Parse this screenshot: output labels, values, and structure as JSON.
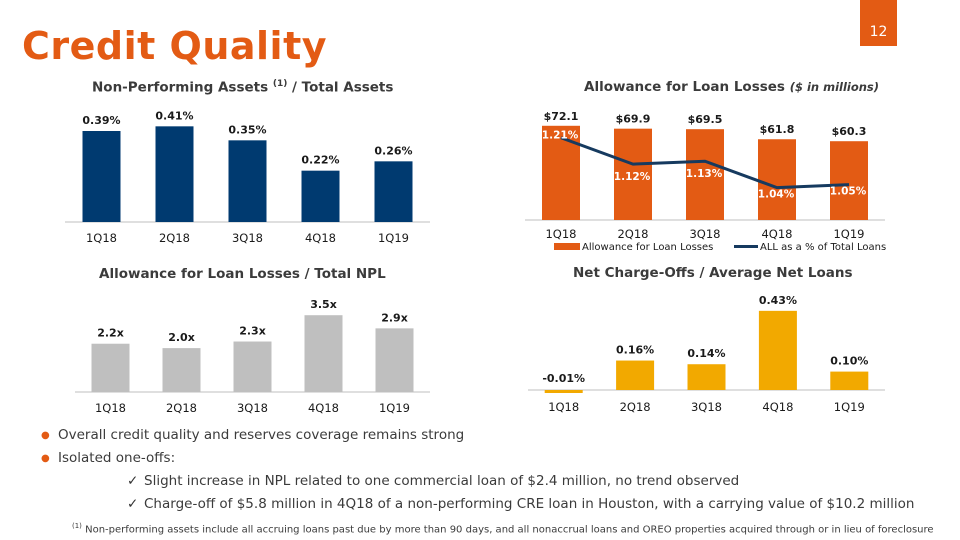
{
  "page_number": "12",
  "title": "Credit Quality",
  "colors": {
    "accent": "#e35b14",
    "navy": "#003a70",
    "gray": "#bfbfbf",
    "gold": "#f2a900",
    "line": "#163a5f"
  },
  "charts": {
    "npa": {
      "title": "Non-Performing Assets",
      "title_sup": "(1)",
      "title_rest": " / Total Assets"
    },
    "allowance": {
      "title": "Allowance for Loan Losses",
      "title_note": "($ in millions)"
    },
    "npl": {
      "title": "Allowance for Loan Losses / Total NPL"
    },
    "nco": {
      "title": "Net Charge-Offs / Average Net Loans"
    }
  },
  "chart_data": [
    {
      "id": "npa",
      "type": "bar",
      "title": "Non-Performing Assets (1) / Total Assets",
      "categories": [
        "1Q18",
        "2Q18",
        "3Q18",
        "4Q18",
        "1Q19"
      ],
      "values": [
        0.39,
        0.41,
        0.35,
        0.22,
        0.26
      ],
      "labels": [
        "0.39%",
        "0.41%",
        "0.35%",
        "0.22%",
        "0.26%"
      ],
      "ylim": [
        0,
        0.42
      ],
      "color": "#003a70"
    },
    {
      "id": "allowance",
      "type": "bar",
      "title": "Allowance for Loan Losses ($ in millions)",
      "categories": [
        "1Q18",
        "2Q18",
        "3Q18",
        "4Q18",
        "1Q19"
      ],
      "series": [
        {
          "name": "Allowance for Loan Losses",
          "type": "bar",
          "values": [
            72.1,
            69.9,
            69.5,
            61.8,
            60.3
          ],
          "labels": [
            "$72.1",
            "$69.9",
            "$69.5",
            "$61.8",
            "$60.3"
          ],
          "color": "#e35b14",
          "ylim": [
            0,
            75
          ]
        },
        {
          "name": "ALL as a % of Total Loans",
          "type": "line",
          "values": [
            1.21,
            1.12,
            1.13,
            1.04,
            1.05
          ],
          "labels": [
            "1.21%",
            "1.12%",
            "1.13%",
            "1.04%",
            "1.05%"
          ],
          "color": "#163a5f",
          "ylim": [
            0.95,
            1.25
          ]
        }
      ],
      "legend": [
        "Allowance for Loan Losses",
        "ALL as a % of Total Loans"
      ]
    },
    {
      "id": "npl",
      "type": "bar",
      "title": "Allowance for Loan Losses / Total NPL",
      "categories": [
        "1Q18",
        "2Q18",
        "3Q18",
        "4Q18",
        "1Q19"
      ],
      "values": [
        2.2,
        2.0,
        2.3,
        3.5,
        2.9
      ],
      "labels": [
        "2.2x",
        "2.0x",
        "2.3x",
        "3.5x",
        "2.9x"
      ],
      "ylim": [
        0,
        3.6
      ],
      "color": "#bfbfbf"
    },
    {
      "id": "nco",
      "type": "bar",
      "title": "Net Charge-Offs / Average Net Loans",
      "categories": [
        "1Q18",
        "2Q18",
        "3Q18",
        "4Q18",
        "1Q19"
      ],
      "values": [
        -0.01,
        0.16,
        0.14,
        0.43,
        0.1
      ],
      "labels": [
        "-0.01%",
        "0.16%",
        "0.14%",
        "0.43%",
        "0.10%"
      ],
      "ylim": [
        -0.01,
        0.44
      ],
      "color": "#f2a900"
    }
  ],
  "bullets": [
    "Overall credit quality and reserves coverage remains strong",
    "Isolated one-offs:"
  ],
  "sub_bullets": [
    "Slight increase in NPL related to one commercial loan of $2.4 million, no trend observed",
    "Charge-off of $5.8 million in 4Q18 of a non-performing CRE loan in Houston, with a carrying value of $10.2 million"
  ],
  "footnote": {
    "mark": "(1)",
    "text": " Non-performing assets include all accruing loans past due by more than 90 days, and all nonaccrual loans and OREO properties acquired through or in lieu of foreclosure"
  }
}
